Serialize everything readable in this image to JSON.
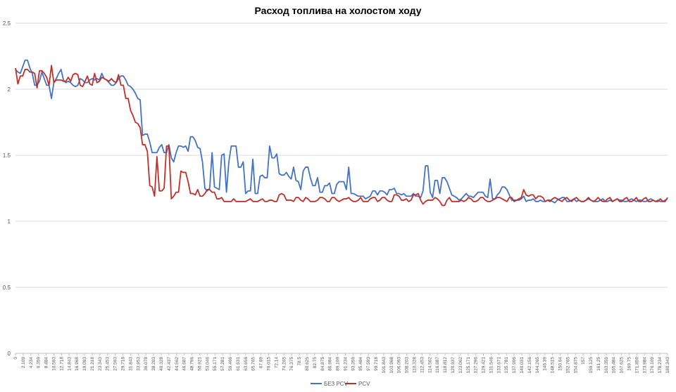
{
  "chart_data": {
    "type": "line",
    "title": "Расход топлива на холостом ходу",
    "xlabel": "",
    "ylabel": "",
    "ylim": [
      0,
      2.5
    ],
    "y_ticks": [
      "0",
      "0.5",
      "1",
      "1.5",
      "2",
      "2.5"
    ],
    "grid": "horizontal",
    "legend_position": "bottom",
    "x_tick_labels": [
      "0",
      "2.109",
      "4.234",
      "6.359",
      "8.484",
      "10.593",
      "12.718",
      "14.843",
      "16.968",
      "19.093",
      "21.218",
      "23.343",
      "25.453",
      "27.593",
      "29.718",
      "31.843",
      "33.953",
      "36.078",
      "38.203",
      "40.328",
      "42.437",
      "44.562",
      "46.687",
      "48.796",
      "50.921",
      "53.046",
      "55.171",
      "57.281",
      "59.406",
      "61.531",
      "63.656",
      "65.765",
      "67.89",
      "70.015",
      "72.14",
      "74.265",
      "76.375",
      "78.5",
      "80.625",
      "82.75",
      "84.875",
      "86.984",
      "89.109",
      "91.234",
      "93.359",
      "95.484",
      "97.593",
      "99.718",
      "101.843",
      "103.968",
      "106.093",
      "108.203",
      "110.328",
      "112.453",
      "114.562",
      "116.687",
      "118.812",
      "120.937",
      "123.062",
      "125.171",
      "127.296",
      "129.421",
      "131.546",
      "133.671",
      "135.781",
      "137.906",
      "140.031",
      "142.156",
      "144.265",
      "146.39",
      "148.515",
      "150.64",
      "152.765",
      "154.875",
      "157",
      "159.125",
      "161.25",
      "163.359",
      "165.484",
      "167.625",
      "169.75",
      "171.859",
      "173.984",
      "176.109",
      "178.234",
      "180.343"
    ],
    "series": [
      {
        "name": "БЕЗ PCV",
        "color": "#4472C4",
        "values": [
          2.15,
          2.13,
          2.12,
          2.17,
          2.22,
          2.22,
          2.16,
          2.12,
          2.03,
          2.03,
          2.06,
          2.13,
          2.08,
          2.03,
          2.03,
          1.93,
          2.05,
          2.08,
          2.12,
          2.15,
          2.07,
          2.05,
          2.06,
          2.05,
          2.03,
          2.02,
          2.03,
          2.08,
          2.07,
          2.05,
          2.05,
          2.07,
          2.08,
          2.07,
          2.08,
          2.07,
          2.12,
          2.08,
          2.07,
          2.05,
          2.03,
          2.03,
          2.05,
          2.08,
          2.1,
          2.1,
          2.07,
          2.03,
          2.02,
          2.0,
          1.97,
          1.93,
          1.92,
          1.65,
          1.66,
          1.66,
          1.6,
          1.52,
          1.52,
          1.52,
          1.56,
          1.58,
          1.52,
          1.52,
          1.58,
          1.48,
          1.45,
          1.52,
          1.57,
          1.57,
          1.56,
          1.57,
          1.53,
          1.64,
          1.64,
          1.61,
          1.56,
          1.55,
          1.45,
          1.25,
          1.23,
          1.25,
          1.52,
          1.26,
          1.25,
          1.24,
          1.5,
          1.51,
          1.22,
          1.45,
          1.57,
          1.57,
          1.57,
          1.41,
          1.41,
          1.45,
          1.21,
          1.23,
          1.23,
          1.47,
          1.21,
          1.21,
          1.34,
          1.35,
          1.33,
          1.33,
          1.57,
          1.48,
          1.48,
          1.51,
          1.36,
          1.35,
          1.35,
          1.37,
          1.34,
          1.32,
          1.41,
          1.31,
          1.3,
          1.24,
          1.38,
          1.41,
          1.41,
          1.33,
          1.27,
          1.27,
          1.33,
          1.22,
          1.22,
          1.27,
          1.27,
          1.29,
          1.21,
          1.21,
          1.28,
          1.3,
          1.3,
          1.3,
          1.24,
          1.41,
          1.21,
          1.21,
          1.2,
          1.19,
          1.19,
          1.19,
          1.17,
          1.18,
          1.19,
          1.23,
          1.23,
          1.2,
          1.23,
          1.23,
          1.22,
          1.2,
          1.24,
          1.24,
          1.25,
          1.21,
          1.21,
          1.2,
          1.21,
          1.19,
          1.19,
          1.19,
          1.21,
          1.19,
          1.19,
          1.18,
          1.23,
          1.42,
          1.42,
          1.22,
          1.18,
          1.31,
          1.31,
          1.21,
          1.33,
          1.33,
          1.3,
          1.25,
          1.2,
          1.19,
          1.18,
          1.16,
          1.17,
          1.19,
          1.21,
          1.19,
          1.19,
          1.18,
          1.2,
          1.22,
          1.22,
          1.22,
          1.19,
          1.18,
          1.32,
          1.17,
          1.17,
          1.2,
          1.22,
          1.26,
          1.26,
          1.24,
          1.2,
          1.16,
          1.16,
          1.16,
          1.16,
          1.17,
          1.19,
          1.15,
          1.16,
          1.16,
          1.17,
          1.15,
          1.15,
          1.16,
          1.15,
          1.15,
          1.16,
          1.16,
          1.15,
          1.14,
          1.16,
          1.17,
          1.18,
          1.18,
          1.15,
          1.15,
          1.16,
          1.17,
          1.15,
          1.16,
          1.15,
          1.15,
          1.16,
          1.17,
          1.16,
          1.15,
          1.15,
          1.15,
          1.16,
          1.17,
          1.15,
          1.15,
          1.16,
          1.15,
          1.16,
          1.17,
          1.16,
          1.16,
          1.15,
          1.15,
          1.16,
          1.17,
          1.16,
          1.15,
          1.16,
          1.16,
          1.15,
          1.15,
          1.16,
          1.17,
          1.16,
          1.15,
          1.16,
          1.15,
          1.15,
          1.16,
          1.17
        ]
      },
      {
        "name": "PCV",
        "color": "#C0302A",
        "values": [
          2.16,
          2.04,
          2.1,
          2.1,
          2.15,
          2.15,
          2.13,
          2.13,
          2.12,
          2.01,
          2.14,
          2.14,
          2.12,
          2.09,
          2.03,
          2.18,
          2.05,
          2.07,
          2.07,
          2.07,
          2.06,
          2.06,
          2.09,
          2.06,
          2.11,
          2.12,
          2.11,
          2.03,
          2.02,
          2.06,
          2.1,
          2.04,
          2.03,
          2.12,
          2.05,
          2.06,
          2.09,
          2.08,
          2.07,
          2.06,
          2.08,
          2.06,
          2.05,
          2.11,
          2.03,
          2.03,
          1.93,
          1.93,
          1.84,
          1.8,
          1.75,
          1.74,
          1.71,
          1.58,
          1.58,
          1.53,
          1.27,
          1.26,
          1.19,
          1.49,
          1.23,
          1.23,
          1.25,
          1.57,
          1.57,
          1.17,
          1.19,
          1.22,
          1.22,
          1.38,
          1.37,
          1.37,
          1.3,
          1.21,
          1.21,
          1.2,
          1.24,
          1.19,
          1.19,
          1.21,
          1.24,
          1.24,
          1.22,
          1.22,
          1.17,
          1.17,
          1.18,
          1.15,
          1.15,
          1.15,
          1.15,
          1.17,
          1.15,
          1.15,
          1.15,
          1.15,
          1.15,
          1.16,
          1.17,
          1.15,
          1.15,
          1.15,
          1.16,
          1.17,
          1.15,
          1.15,
          1.16,
          1.16,
          1.15,
          1.15,
          1.2,
          1.21,
          1.2,
          1.16,
          1.16,
          1.16,
          1.15,
          1.18,
          1.18,
          1.16,
          1.15,
          1.18,
          1.17,
          1.15,
          1.15,
          1.15,
          1.16,
          1.18,
          1.18,
          1.17,
          1.15,
          1.15,
          1.18,
          1.18,
          1.16,
          1.15,
          1.16,
          1.17,
          1.17,
          1.18,
          1.16,
          1.15,
          1.15,
          1.16,
          1.18,
          1.15,
          1.15,
          1.15,
          1.17,
          1.18,
          1.18,
          1.15,
          1.16,
          1.18,
          1.18,
          1.16,
          1.15,
          1.15,
          1.2,
          1.2,
          1.19,
          1.16,
          1.16,
          1.17,
          1.15,
          1.16,
          1.2,
          1.2,
          1.21,
          1.16,
          1.13,
          1.15,
          1.16,
          1.16,
          1.16,
          1.18,
          1.17,
          1.15,
          1.12,
          1.12,
          1.16,
          1.18,
          1.15,
          1.15,
          1.15,
          1.15,
          1.16,
          1.15,
          1.16,
          1.18,
          1.17,
          1.15,
          1.15,
          1.16,
          1.18,
          1.18,
          1.16,
          1.15,
          1.15,
          1.16,
          1.17,
          1.18,
          1.18,
          1.17,
          1.16,
          1.15,
          1.18,
          1.18,
          1.15,
          1.16,
          1.17,
          1.18,
          1.24,
          1.2,
          1.19,
          1.2,
          1.2,
          1.17,
          1.19,
          1.19,
          1.18,
          1.15,
          1.16,
          1.15,
          1.17,
          1.18,
          1.17,
          1.16,
          1.15,
          1.17,
          1.18,
          1.16,
          1.15,
          1.17,
          1.18,
          1.16,
          1.15,
          1.15,
          1.16,
          1.18,
          1.16,
          1.15,
          1.16,
          1.18,
          1.16,
          1.15,
          1.15,
          1.17,
          1.18,
          1.15,
          1.16,
          1.17,
          1.15,
          1.15,
          1.17,
          1.18,
          1.15,
          1.15,
          1.16,
          1.18,
          1.15,
          1.15,
          1.17,
          1.18,
          1.15,
          1.15,
          1.16,
          1.15,
          1.15,
          1.17,
          1.15,
          1.15,
          1.18
        ]
      }
    ]
  }
}
